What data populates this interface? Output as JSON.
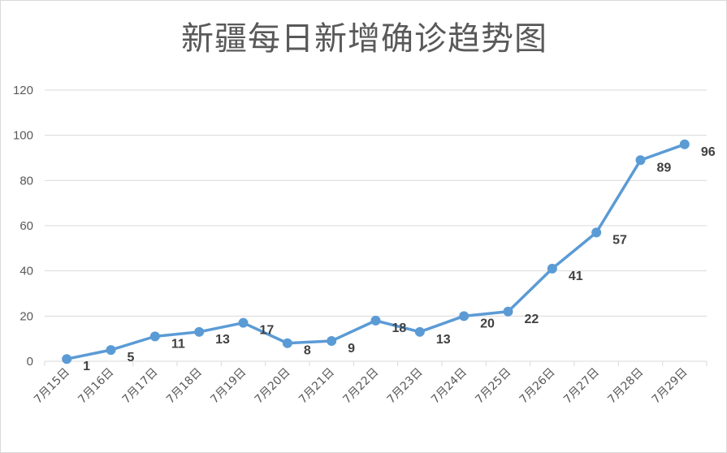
{
  "chart_data": {
    "type": "line",
    "title": "新疆每日新增确诊趋势图",
    "categories": [
      "7月15日",
      "7月16日",
      "7月17日",
      "7月18日",
      "7月19日",
      "7月20日",
      "7月21日",
      "7月22日",
      "7月23日",
      "7月24日",
      "7月25日",
      "7月26日",
      "7月27日",
      "7月28日",
      "7月29日"
    ],
    "series": [
      {
        "values": [
          1,
          5,
          11,
          13,
          17,
          8,
          9,
          18,
          13,
          20,
          22,
          41,
          57,
          89,
          96
        ]
      }
    ],
    "ylim": [
      0,
      120
    ],
    "yticks": [
      0,
      20,
      40,
      60,
      80,
      100,
      120
    ],
    "grid": true,
    "data_labels": true,
    "line_color": "#5b9bd5",
    "grid_color": "#d9d9d9",
    "legend": "none"
  }
}
